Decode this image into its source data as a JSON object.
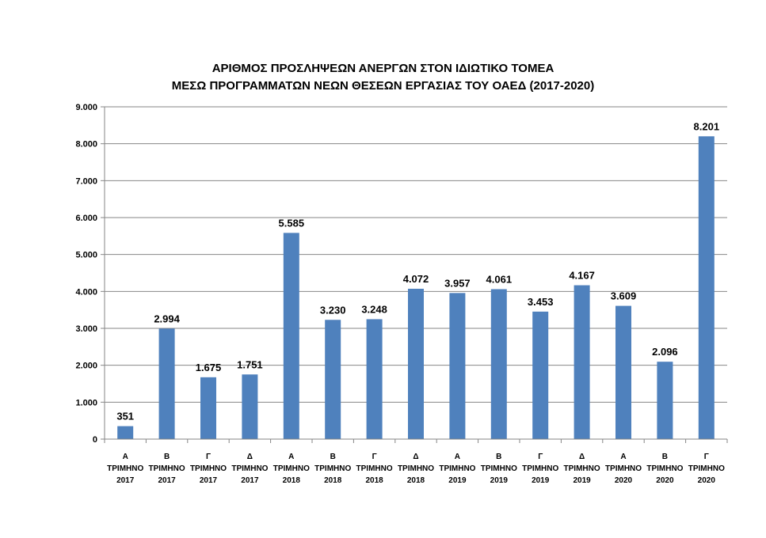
{
  "chart_data": {
    "type": "bar",
    "title_lines": [
      "ΑΡΙΘΜΟΣ ΠΡΟΣΛΗΨΕΩΝ ΑΝΕΡΓΩΝ ΣΤΟΝ ΙΔΙΩΤΙΚΟ ΤΟΜΕΑ",
      "ΜΕΣΩ ΠΡΟΓΡΑΜΜΑΤΩΝ ΝΕΩΝ ΘΕΣΕΩΝ ΕΡΓΑΣΙΑΣ ΤΟΥ ΟΑΕΔ (2017-2020)"
    ],
    "categories": [
      [
        "Α",
        "ΤΡΙΜΗΝΟ",
        "2017"
      ],
      [
        "Β",
        "ΤΡΙΜΗΝΟ",
        "2017"
      ],
      [
        "Γ",
        "ΤΡΙΜΗΝΟ",
        "2017"
      ],
      [
        "Δ",
        "ΤΡΙΜΗΝΟ",
        "2017"
      ],
      [
        "Α",
        "ΤΡΙΜΗΝΟ",
        "2018"
      ],
      [
        "Β",
        "ΤΡΙΜΗΝΟ",
        "2018"
      ],
      [
        "Γ",
        "ΤΡΙΜΗΝΟ",
        "2018"
      ],
      [
        "Δ",
        "ΤΡΙΜΗΝΟ",
        "2018"
      ],
      [
        "Α",
        "ΤΡΙΜΗΝΟ",
        "2019"
      ],
      [
        "Β",
        "ΤΡΙΜΗΝΟ",
        "2019"
      ],
      [
        "Γ",
        "ΤΡΙΜΗΝΟ",
        "2019"
      ],
      [
        "Δ",
        "ΤΡΙΜΗΝΟ",
        "2019"
      ],
      [
        "Α",
        "ΤΡΙΜΗΝΟ",
        "2020"
      ],
      [
        "Β",
        "ΤΡΙΜΗΝΟ",
        "2020"
      ],
      [
        "Γ",
        "ΤΡΙΜΗΝΟ",
        "2020"
      ]
    ],
    "values": [
      351,
      2994,
      1675,
      1751,
      5585,
      3230,
      3248,
      4072,
      3957,
      4061,
      3453,
      4167,
      3609,
      2096,
      8201
    ],
    "value_labels": [
      "351",
      "2.994",
      "1.675",
      "1.751",
      "5.585",
      "3.230",
      "3.248",
      "4.072",
      "3.957",
      "4.061",
      "3.453",
      "4.167",
      "3.609",
      "2.096",
      "8.201"
    ],
    "ylim": [
      0,
      9000
    ],
    "yticks": [
      0,
      1000,
      2000,
      3000,
      4000,
      5000,
      6000,
      7000,
      8000,
      9000
    ],
    "ytick_labels": [
      "0",
      "1.000",
      "2.000",
      "3.000",
      "4.000",
      "5.000",
      "6.000",
      "7.000",
      "8.000",
      "9.000"
    ],
    "grid": true,
    "legend": "none",
    "colors": {
      "bar": "#4f81bd",
      "grid": "#868686",
      "axis": "#868686"
    }
  }
}
